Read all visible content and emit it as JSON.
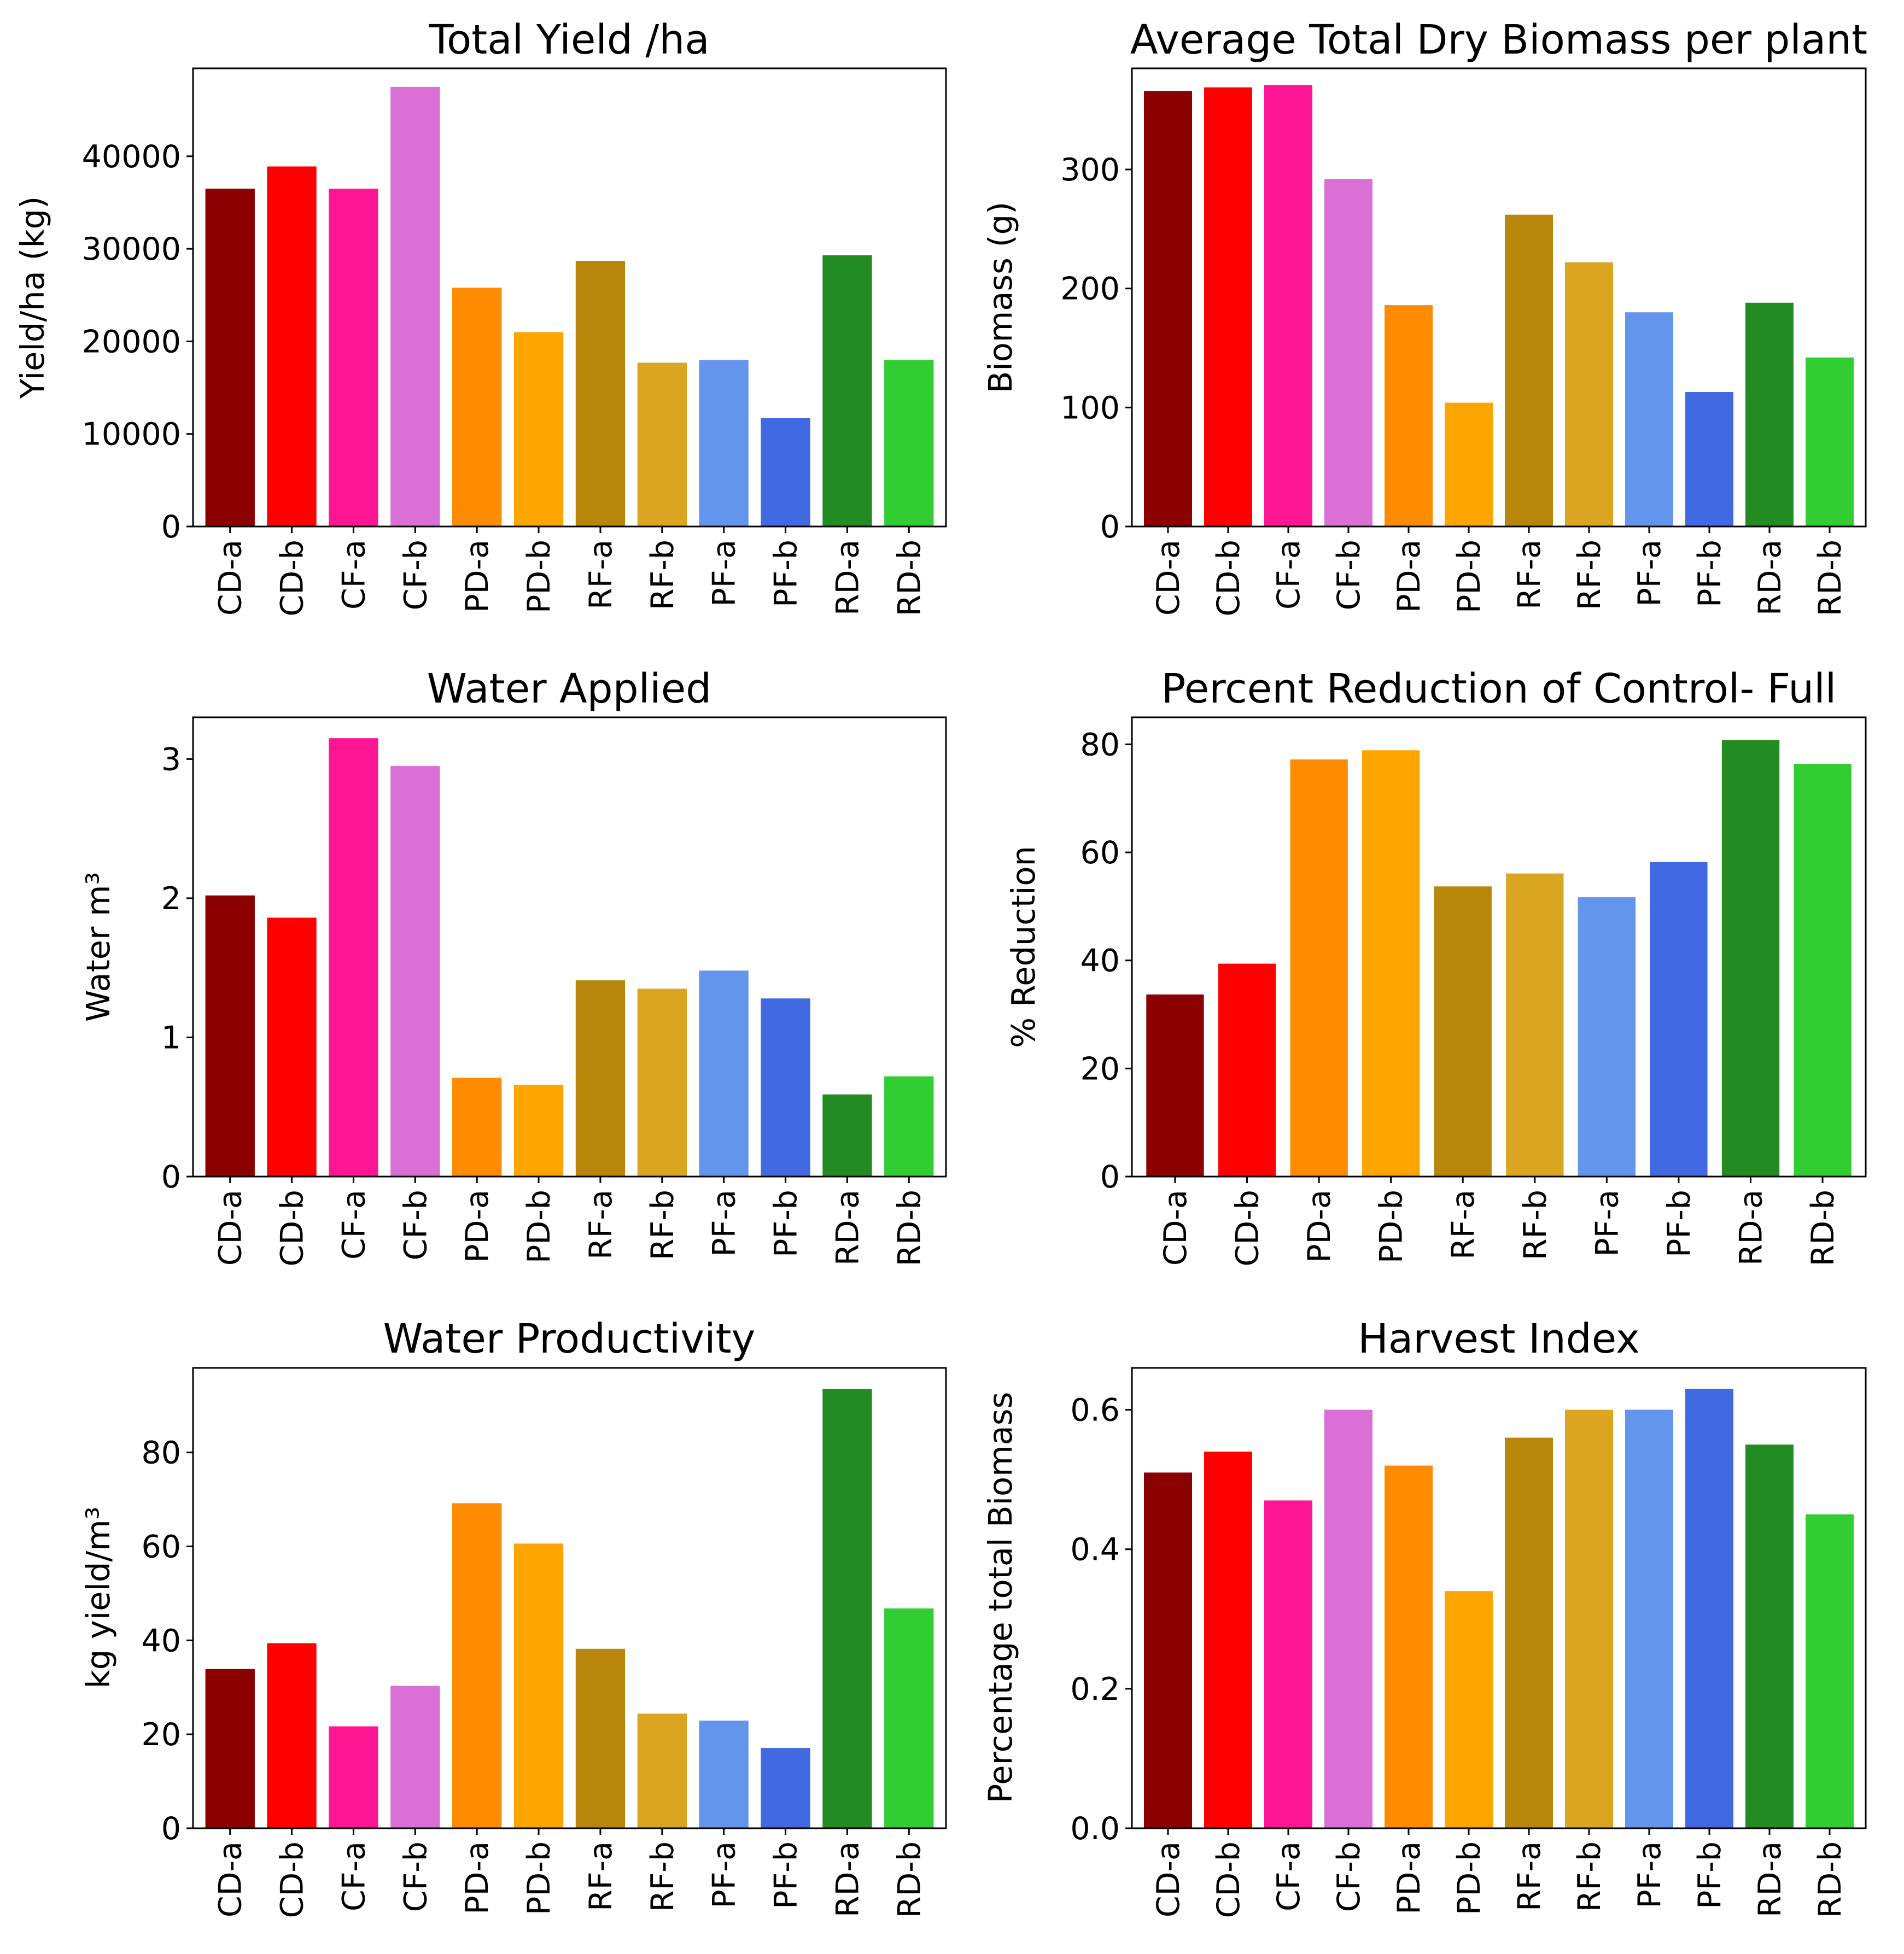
{
  "chart_data": [
    {
      "type": "bar",
      "title": "Total Yield /ha",
      "xlabel": "",
      "ylabel": "Yield/ha (kg)",
      "ylim": [
        0,
        49500
      ],
      "yticks": [
        0,
        10000,
        20000,
        30000,
        40000
      ],
      "categories": [
        "CD-a",
        "CD-b",
        "CF-a",
        "CF-b",
        "PD-a",
        "PD-b",
        "RF-a",
        "RF-b",
        "PF-a",
        "PF-b",
        "RD-a",
        "RD-b"
      ],
      "values": [
        36500,
        38900,
        36500,
        47500,
        25800,
        21000,
        28700,
        17700,
        18000,
        11700,
        29300,
        18000
      ],
      "colors": [
        "#8b0000",
        "#ff0000",
        "#ff1493",
        "#da70d6",
        "#ff8c00",
        "#ffa500",
        "#b8860b",
        "#daa520",
        "#6495ed",
        "#4169e1",
        "#228b22",
        "#32cd32"
      ]
    },
    {
      "type": "bar",
      "title": "Average Total Dry Biomass per plant",
      "xlabel": "",
      "ylabel": "Biomass (g)",
      "ylim": [
        0,
        385
      ],
      "yticks": [
        0,
        100,
        200,
        300
      ],
      "categories": [
        "CD-a",
        "CD-b",
        "CF-a",
        "CF-b",
        "PD-a",
        "PD-b",
        "RF-a",
        "RF-b",
        "PF-a",
        "PF-b",
        "RD-a",
        "RD-b"
      ],
      "values": [
        366,
        369,
        371,
        292,
        186,
        104,
        262,
        222,
        180,
        113,
        188,
        142
      ],
      "colors": [
        "#8b0000",
        "#ff0000",
        "#ff1493",
        "#da70d6",
        "#ff8c00",
        "#ffa500",
        "#b8860b",
        "#daa520",
        "#6495ed",
        "#4169e1",
        "#228b22",
        "#32cd32"
      ]
    },
    {
      "type": "bar",
      "title": "Water Applied",
      "xlabel": "",
      "ylabel": "Water m³",
      "ylim": [
        0,
        3.3
      ],
      "yticks": [
        0,
        1,
        2,
        3
      ],
      "categories": [
        "CD-a",
        "CD-b",
        "CF-a",
        "CF-b",
        "PD-a",
        "PD-b",
        "RF-a",
        "RF-b",
        "PF-a",
        "PF-b",
        "RD-a",
        "RD-b"
      ],
      "values": [
        2.02,
        1.86,
        3.15,
        2.95,
        0.71,
        0.66,
        1.41,
        1.35,
        1.48,
        1.28,
        0.59,
        0.72
      ],
      "colors": [
        "#8b0000",
        "#ff0000",
        "#ff1493",
        "#da70d6",
        "#ff8c00",
        "#ffa500",
        "#b8860b",
        "#daa520",
        "#6495ed",
        "#4169e1",
        "#228b22",
        "#32cd32"
      ]
    },
    {
      "type": "bar",
      "title": "Percent Reduction of Control- Full",
      "xlabel": "",
      "ylabel": "% Reduction",
      "ylim": [
        0,
        85
      ],
      "yticks": [
        0,
        20,
        40,
        60,
        80
      ],
      "categories": [
        "CD-a",
        "CD-b",
        "PD-a",
        "PD-b",
        "RF-a",
        "RF-b",
        "PF-a",
        "PF-b",
        "RD-a",
        "RD-b"
      ],
      "values": [
        33.7,
        39.4,
        77.2,
        78.9,
        53.7,
        56.1,
        51.7,
        58.2,
        80.8,
        76.4
      ],
      "colors": [
        "#8b0000",
        "#ff0000",
        "#ff8c00",
        "#ffa500",
        "#b8860b",
        "#daa520",
        "#6495ed",
        "#4169e1",
        "#228b22",
        "#32cd32"
      ]
    },
    {
      "type": "bar",
      "title": "Water Productivity",
      "xlabel": "",
      "ylabel": "kg yield/m³",
      "ylim": [
        0,
        98
      ],
      "yticks": [
        0,
        20,
        40,
        60,
        80
      ],
      "categories": [
        "CD-a",
        "CD-b",
        "CF-a",
        "CF-b",
        "PD-a",
        "PD-b",
        "RF-a",
        "RF-b",
        "PF-a",
        "PF-b",
        "RD-a",
        "RD-b"
      ],
      "values": [
        33.9,
        39.4,
        21.7,
        30.3,
        69.2,
        60.6,
        38.2,
        24.4,
        22.9,
        17.1,
        93.5,
        46.8
      ],
      "colors": [
        "#8b0000",
        "#ff0000",
        "#ff1493",
        "#da70d6",
        "#ff8c00",
        "#ffa500",
        "#b8860b",
        "#daa520",
        "#6495ed",
        "#4169e1",
        "#228b22",
        "#32cd32"
      ]
    },
    {
      "type": "bar",
      "title": "Harvest Index",
      "xlabel": "",
      "ylabel": "Percentage total Biomass",
      "ylim": [
        0,
        0.66
      ],
      "yticks": [
        0.0,
        0.2,
        0.4,
        0.6
      ],
      "ytick_labels": [
        "0.0",
        "0.2",
        "0.4",
        "0.6"
      ],
      "categories": [
        "CD-a",
        "CD-b",
        "CF-a",
        "CF-b",
        "PD-a",
        "PD-b",
        "RF-a",
        "RF-b",
        "PF-a",
        "PF-b",
        "RD-a",
        "RD-b"
      ],
      "values": [
        0.51,
        0.54,
        0.47,
        0.6,
        0.52,
        0.34,
        0.56,
        0.6,
        0.6,
        0.63,
        0.55,
        0.45
      ],
      "colors": [
        "#8b0000",
        "#ff0000",
        "#ff1493",
        "#da70d6",
        "#ff8c00",
        "#ffa500",
        "#b8860b",
        "#daa520",
        "#6495ed",
        "#4169e1",
        "#228b22",
        "#32cd32"
      ]
    }
  ]
}
